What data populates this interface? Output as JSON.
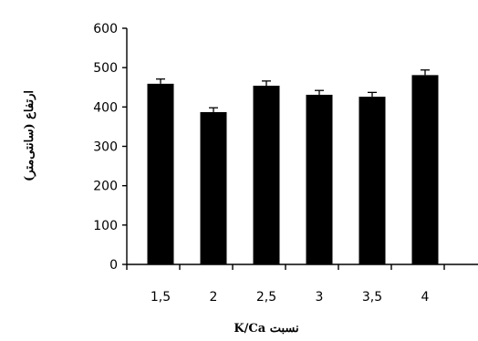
{
  "chart_data": {
    "type": "bar",
    "categories": [
      "1,5",
      "2",
      "2,5",
      "3",
      "3,5",
      "4"
    ],
    "values": [
      459,
      387,
      454,
      431,
      426,
      481
    ],
    "errors": [
      12,
      11,
      12,
      11,
      11,
      13
    ],
    "title": "",
    "xlabel": "نسبت K/Ca",
    "ylabel": "ارتفاع (سانتی‌متر)",
    "ylim": [
      0,
      600
    ],
    "yticks": [
      0,
      100,
      200,
      300,
      400,
      500,
      600
    ],
    "grid": false,
    "bar_color": "#000000"
  }
}
